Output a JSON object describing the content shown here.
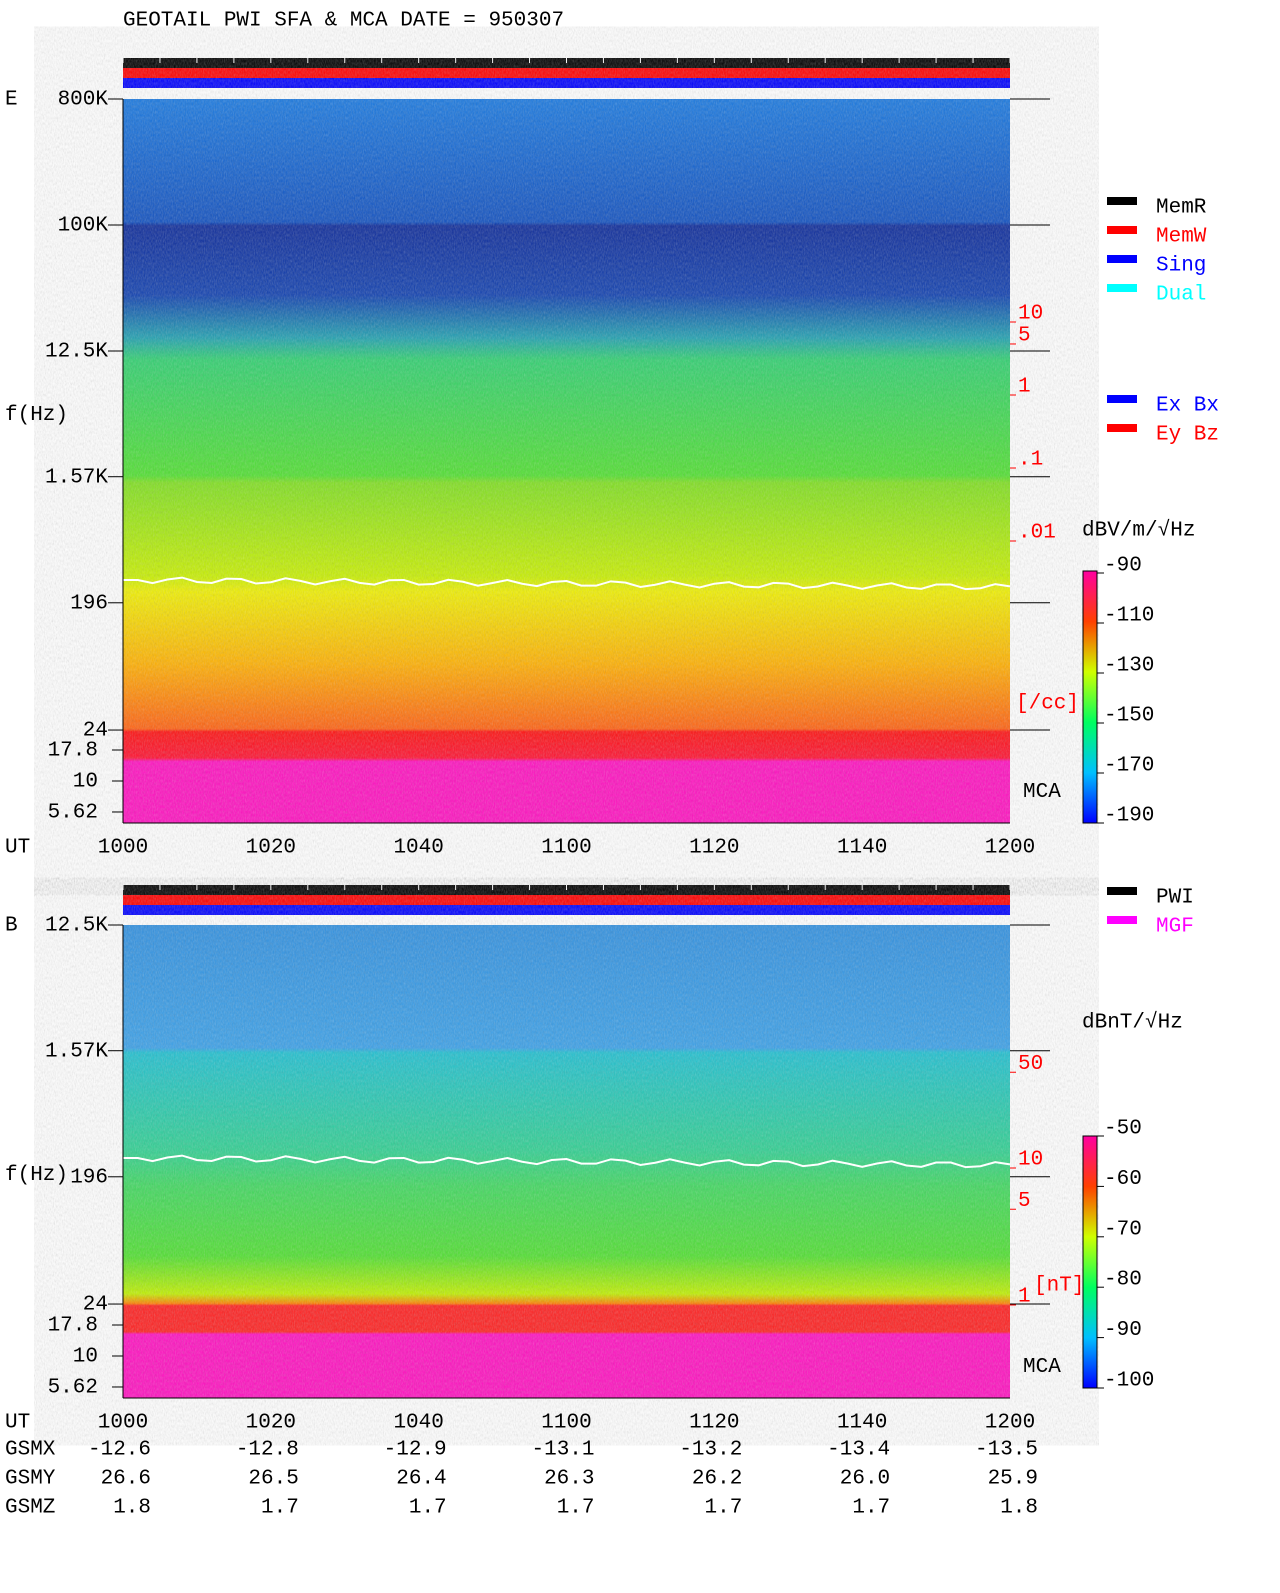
{
  "title": "GEOTAIL  PWI SFA & MCA  DATE = 950307",
  "time_label": "UT",
  "time_ticks": [
    "1000",
    "1020",
    "1040",
    "1100",
    "1120",
    "1140",
    "1200"
  ],
  "panels": [
    {
      "component": "E",
      "freq_label": "f(Hz)",
      "freq_ticks": [
        {
          "value": 800000,
          "label": "800K"
        },
        {
          "value": 100000,
          "label": "100K"
        },
        {
          "value": 12500,
          "label": "12.5K"
        },
        {
          "value": 1570,
          "label": "1.57K"
        },
        {
          "value": 196,
          "label": "196"
        },
        {
          "value": 24,
          "label": "24"
        }
      ],
      "mca_ticks": [
        {
          "value": 17.8,
          "label": "17.8"
        },
        {
          "value": 10,
          "label": "10"
        },
        {
          "value": 5.62,
          "label": "5.62"
        }
      ],
      "mca_label": "MCA",
      "right_ticks": [
        {
          "value": 10,
          "label": "10"
        },
        {
          "value": 5,
          "label": "5"
        },
        {
          "value": 1,
          "label": "1"
        },
        {
          "value": 0.1,
          "label": ".1"
        },
        {
          "value": 0.01,
          "label": ".01"
        }
      ],
      "right_unit": "[/cc]",
      "status_legend": [
        {
          "name": "MemR",
          "color": "#000000"
        },
        {
          "name": "MemW",
          "color": "#ff0000"
        },
        {
          "name": "Sing",
          "color": "#0000ff"
        },
        {
          "name": "Dual",
          "color": "#00ffff"
        }
      ],
      "component_legend": [
        {
          "name": "Ex Bx",
          "color": "#0000ff"
        },
        {
          "name": "Ey Bz",
          "color": "#ff0000"
        }
      ],
      "colorbar": {
        "unit": "dBV/m/√Hz",
        "ticks": [
          -90,
          -110,
          -130,
          -150,
          -170,
          -190
        ]
      }
    },
    {
      "component": "B",
      "freq_label": "f(Hz)",
      "freq_ticks": [
        {
          "value": 12500,
          "label": "12.5K"
        },
        {
          "value": 1570,
          "label": "1.57K"
        },
        {
          "value": 196,
          "label": "196"
        },
        {
          "value": 24,
          "label": "24"
        }
      ],
      "mca_ticks": [
        {
          "value": 17.8,
          "label": "17.8"
        },
        {
          "value": 10,
          "label": "10"
        },
        {
          "value": 5.62,
          "label": "5.62"
        }
      ],
      "mca_label": "MCA",
      "right_ticks": [
        {
          "value": 50,
          "label": "50"
        },
        {
          "value": 10,
          "label": "10"
        },
        {
          "value": 5,
          "label": "5"
        },
        {
          "value": 1,
          "label": "1"
        }
      ],
      "right_unit": "[nT]",
      "status_legend": [
        {
          "name": "PWI",
          "color": "#000000"
        },
        {
          "name": "MGF",
          "color": "#ff00ff"
        }
      ],
      "colorbar": {
        "unit": "dBnT/√Hz",
        "ticks": [
          -50,
          -60,
          -70,
          -80,
          -90,
          -100
        ]
      }
    }
  ],
  "orbit": [
    {
      "name": "GSMX",
      "values": [
        "-12.6",
        "-12.8",
        "-12.9",
        "-13.1",
        "-13.2",
        "-13.4",
        "-13.5"
      ]
    },
    {
      "name": "GSMY",
      "values": [
        "26.6",
        "26.5",
        "26.4",
        "26.3",
        "26.2",
        "26.0",
        "25.9"
      ]
    },
    {
      "name": "GSMZ",
      "values": [
        "1.8",
        "1.7",
        "1.7",
        "1.7",
        "1.7",
        "1.7",
        "1.8"
      ]
    }
  ]
}
